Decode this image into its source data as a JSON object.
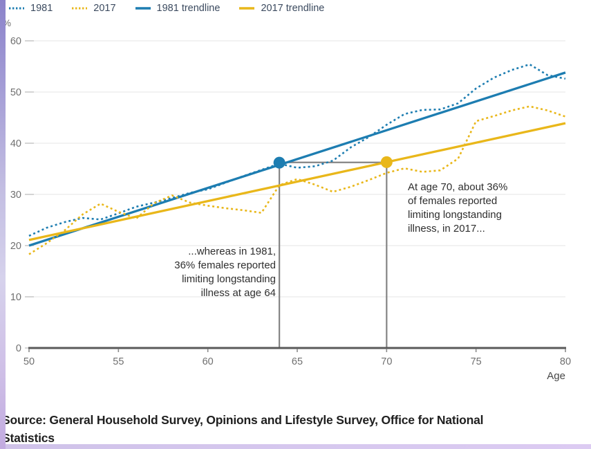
{
  "legend": {
    "items": [
      {
        "label": "1981",
        "style": "dotted",
        "color": "#1d7db1"
      },
      {
        "label": "2017",
        "style": "dotted",
        "color": "#e9b71a"
      },
      {
        "label": "1981 trendline",
        "style": "solid",
        "color": "#1d7db1"
      },
      {
        "label": "2017 trendline",
        "style": "solid",
        "color": "#e9b71a"
      }
    ]
  },
  "axis": {
    "unit_label": "%",
    "x_label": "Age"
  },
  "annotations": {
    "right": {
      "lines": [
        "At age 70, about 36%",
        "of females reported",
        "limiting longstanding",
        "illness, in 2017..."
      ]
    },
    "left": {
      "lines": [
        "...whereas in 1981,",
        "36% females reported",
        "limiting longstanding",
        "illness at age 64"
      ]
    }
  },
  "source": {
    "lines": [
      "Source: General Household Survey, Opinions and Lifestyle Survey, Office for National",
      "Statistics"
    ]
  },
  "colors": {
    "blue": "#1d7db1",
    "yellow": "#e9b71a",
    "gridline": "#e4e4e4",
    "axis_line": "#595959",
    "tick_text": "#6f6f6f",
    "age_label_text": "#474747",
    "connector": "#848484"
  },
  "chart_data": {
    "type": "line",
    "title": "",
    "xlabel": "Age",
    "ylabel": "%",
    "xlim": [
      50,
      80
    ],
    "ylim": [
      0,
      60
    ],
    "x_ticks": [
      50,
      55,
      60,
      65,
      70,
      75,
      80
    ],
    "y_ticks": [
      0,
      10,
      20,
      30,
      40,
      50,
      60
    ],
    "grid": "horizontal",
    "legend_position": "top",
    "x": [
      50,
      51,
      52,
      53,
      54,
      55,
      56,
      57,
      58,
      59,
      60,
      61,
      62,
      63,
      64,
      65,
      66,
      67,
      68,
      69,
      70,
      71,
      72,
      73,
      74,
      75,
      76,
      77,
      78,
      79,
      80
    ],
    "series": [
      {
        "name": "1981",
        "style": "dotted",
        "color": "#1d7db1",
        "values": [
          21.9,
          23.5,
          24.6,
          25.4,
          25.1,
          26.3,
          27.6,
          28.4,
          29.3,
          30.3,
          31.0,
          32.3,
          33.6,
          34.8,
          36.0,
          35.2,
          35.5,
          36.6,
          39.2,
          41.2,
          43.6,
          45.7,
          46.5,
          46.6,
          47.8,
          50.7,
          52.8,
          54.3,
          55.4,
          53.3,
          52.6
        ]
      },
      {
        "name": "2017",
        "style": "dotted",
        "color": "#e9b71a",
        "values": [
          18.3,
          20.5,
          23.0,
          26.1,
          28.2,
          26.6,
          25.3,
          28.3,
          29.8,
          28.4,
          27.8,
          27.3,
          26.9,
          26.4,
          31.8,
          33.0,
          31.9,
          30.5,
          31.5,
          32.8,
          34.2,
          35.1,
          34.4,
          34.7,
          37.0,
          44.3,
          45.3,
          46.4,
          47.2,
          46.4,
          45.2
        ]
      },
      {
        "name": "1981 trendline",
        "style": "solid",
        "color": "#1d7db1",
        "trend": [
          [
            50,
            20.0
          ],
          [
            80,
            53.8
          ]
        ]
      },
      {
        "name": "2017 trendline",
        "style": "solid",
        "color": "#e9b71a",
        "trend": [
          [
            50,
            21.1
          ],
          [
            80,
            43.9
          ]
        ]
      }
    ],
    "markers": [
      {
        "age": 64,
        "value": 36.2,
        "color": "#1d7db1",
        "meaning": "1981: 36% at age 64"
      },
      {
        "age": 70,
        "value": 36.3,
        "color": "#e9b71a",
        "meaning": "2017: about 36% at age 70"
      }
    ],
    "connector": {
      "ages": [
        64,
        70
      ],
      "top_value": 36.25
    }
  }
}
